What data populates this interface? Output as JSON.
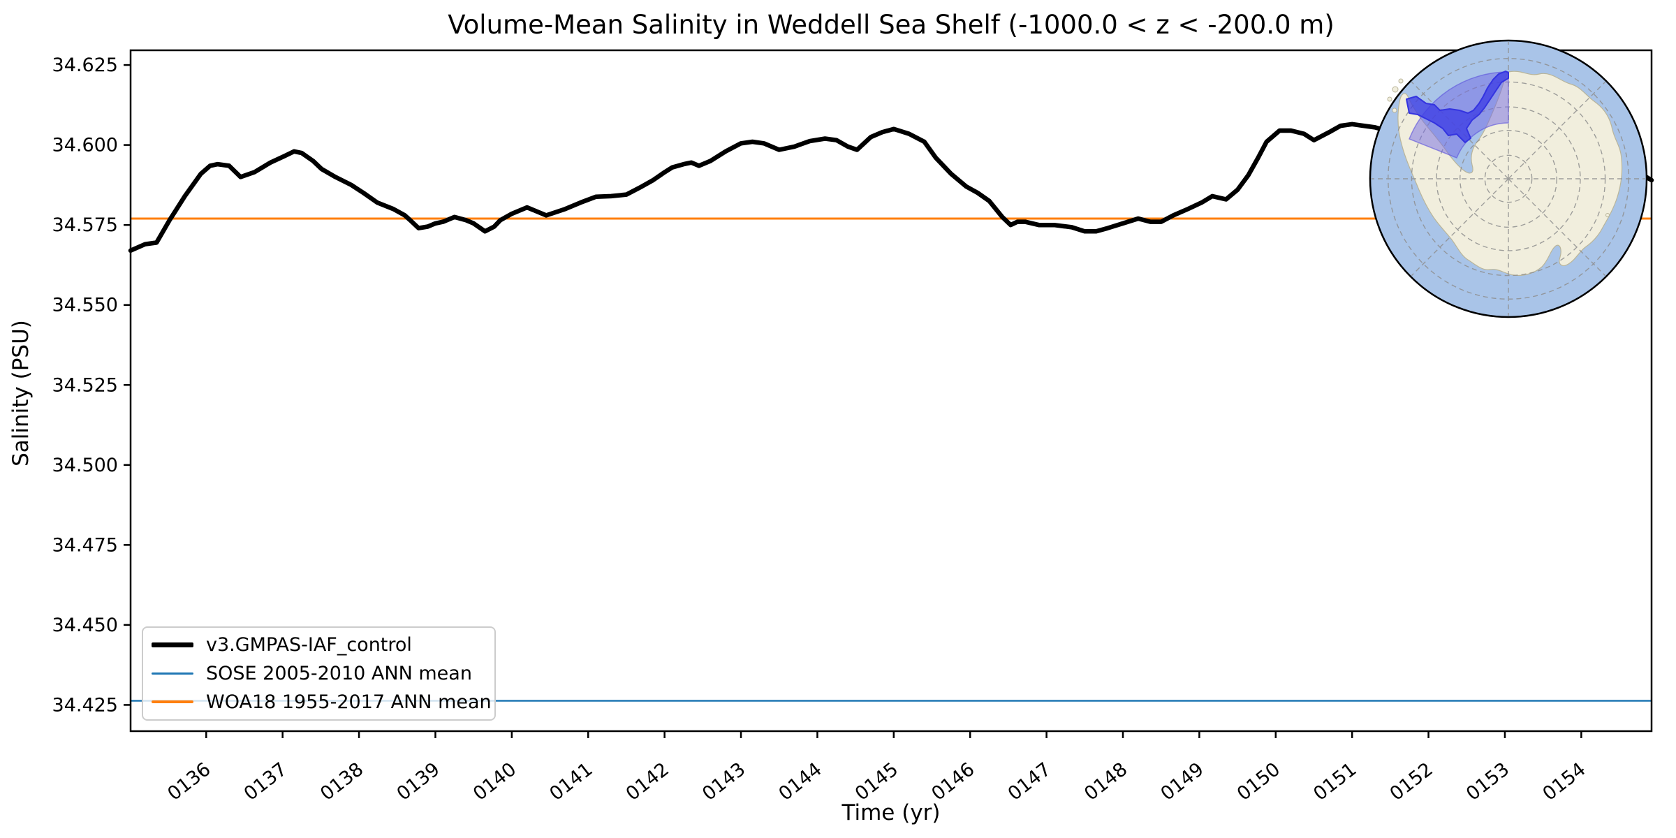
{
  "figure": {
    "title": "Volume-Mean Salinity in Weddell Sea Shelf (-1000.0 < z < -200.0 m)"
  },
  "chart_data": {
    "type": "line",
    "title": "Volume-Mean Salinity in Weddell Sea Shelf (-1000.0 < z < -200.0 m)",
    "xlabel": "Time (yr)",
    "ylabel": "Salinity (PSU)",
    "xlim": [
      135.01,
      154.92
    ],
    "ylim": [
      34.4168,
      34.6296
    ],
    "grid": false,
    "legend_position": "lower left",
    "xticks": {
      "values": [
        136,
        137,
        138,
        139,
        140,
        141,
        142,
        143,
        144,
        145,
        146,
        147,
        148,
        149,
        150,
        151,
        152,
        153,
        154
      ],
      "labels": [
        "0136",
        "0137",
        "0138",
        "0139",
        "0140",
        "0141",
        "0142",
        "0143",
        "0144",
        "0145",
        "0146",
        "0147",
        "0148",
        "0149",
        "0150",
        "0151",
        "0152",
        "0153",
        "0154"
      ],
      "rotation_deg": -38
    },
    "yticks": {
      "values": [
        34.425,
        34.45,
        34.475,
        34.5,
        34.525,
        34.55,
        34.575,
        34.6,
        34.625
      ],
      "labels": [
        "34.425",
        "34.450",
        "34.475",
        "34.500",
        "34.525",
        "34.550",
        "34.575",
        "34.600",
        "34.625"
      ]
    },
    "series": [
      {
        "name": "v3.GMPAS-IAF_control",
        "kind": "curve",
        "color": "#000000",
        "linewidth": 6.5,
        "x": [
          135.01,
          135.2,
          135.35,
          135.52,
          135.72,
          135.93,
          136.05,
          136.15,
          136.3,
          136.45,
          136.63,
          136.84,
          137.02,
          137.15,
          137.25,
          137.4,
          137.51,
          137.69,
          137.9,
          138.06,
          138.24,
          138.45,
          138.6,
          138.67,
          138.78,
          138.9,
          139.0,
          139.1,
          139.25,
          139.4,
          139.5,
          139.65,
          139.77,
          139.85,
          140.0,
          140.2,
          140.45,
          140.7,
          140.9,
          141.1,
          141.3,
          141.5,
          141.7,
          141.85,
          142.0,
          142.1,
          142.25,
          142.35,
          142.45,
          142.6,
          142.8,
          143.0,
          143.15,
          143.3,
          143.5,
          143.7,
          143.9,
          144.1,
          144.25,
          144.4,
          144.52,
          144.7,
          144.85,
          145.0,
          145.2,
          145.4,
          145.55,
          145.75,
          145.95,
          146.1,
          146.25,
          146.42,
          146.53,
          146.62,
          146.72,
          146.9,
          147.1,
          147.33,
          147.5,
          147.65,
          147.8,
          148.0,
          148.2,
          148.36,
          148.5,
          148.66,
          148.85,
          149.03,
          149.17,
          149.35,
          149.5,
          149.64,
          149.77,
          149.88,
          150.05,
          150.2,
          150.37,
          150.5,
          150.7,
          150.85,
          151.0,
          151.15,
          151.3,
          151.6,
          152.0,
          152.4,
          152.8,
          153.2,
          153.6,
          154.0,
          154.4,
          154.7,
          154.85,
          154.92
        ],
        "y": [
          34.567,
          34.569,
          34.5695,
          34.5765,
          34.584,
          34.591,
          34.5935,
          34.594,
          34.5935,
          34.59,
          34.5915,
          34.5945,
          34.5965,
          34.598,
          34.5975,
          34.595,
          34.5925,
          34.59,
          34.5875,
          34.585,
          34.582,
          34.58,
          34.578,
          34.5765,
          34.574,
          34.5745,
          34.5755,
          34.576,
          34.5775,
          34.5765,
          34.5755,
          34.573,
          34.5745,
          34.5765,
          34.5785,
          34.5805,
          34.578,
          34.58,
          34.582,
          34.5838,
          34.584,
          34.5845,
          34.587,
          34.589,
          34.5915,
          34.593,
          34.594,
          34.5945,
          34.5935,
          34.595,
          34.598,
          34.6005,
          34.601,
          34.6005,
          34.5985,
          34.5995,
          34.6012,
          34.602,
          34.6015,
          34.5995,
          34.5985,
          34.6025,
          34.604,
          34.605,
          34.6035,
          34.601,
          34.596,
          34.591,
          34.587,
          34.585,
          34.5825,
          34.5775,
          34.575,
          34.576,
          34.576,
          34.575,
          34.575,
          34.5743,
          34.573,
          34.573,
          34.574,
          34.5755,
          34.577,
          34.576,
          34.576,
          34.578,
          34.58,
          34.582,
          34.584,
          34.583,
          34.586,
          34.5905,
          34.596,
          34.601,
          34.6045,
          34.6045,
          34.6035,
          34.6015,
          34.604,
          34.606,
          34.6065,
          34.606,
          34.6055,
          34.6035,
          34.6,
          34.5965,
          34.594,
          34.5925,
          34.5915,
          34.591,
          34.5905,
          34.59,
          34.59,
          34.589
        ]
      },
      {
        "name": "SOSE 2005-2010 ANN mean",
        "kind": "hline",
        "color": "#1f77b4",
        "linewidth": 2.5,
        "value": 34.4263
      },
      {
        "name": "WOA18 1955-2017 ANN mean",
        "kind": "hline",
        "color": "#ff7f0e",
        "linewidth": 3,
        "value": 34.577
      }
    ],
    "inset_map": {
      "description": "South polar stereographic map of Antarctica with Weddell Sea shelf region highlighted",
      "ocean_color": "#a9c4e8",
      "land_color": "#f1eedd",
      "coast_color": "#b9b59a",
      "graticule_color": "#8f8f8f",
      "wedge_color": "rgba(116,106,228,0.50)",
      "shelf_color": "rgba(62,62,228,0.78)",
      "shelf_edge_color": "#3434e0",
      "outline_color": "#000000"
    }
  },
  "legend": {
    "items": [
      {
        "label": "v3.GMPAS-IAF_control",
        "color": "#000000",
        "thickness": 7
      },
      {
        "label": "SOSE 2005-2010 ANN mean",
        "color": "#1f77b4",
        "thickness": 3
      },
      {
        "label": "WOA18 1955-2017 ANN mean",
        "color": "#ff7f0e",
        "thickness": 4
      }
    ]
  },
  "axes": {
    "xlabel": "Time (yr)",
    "ylabel": "Salinity (PSU)"
  }
}
